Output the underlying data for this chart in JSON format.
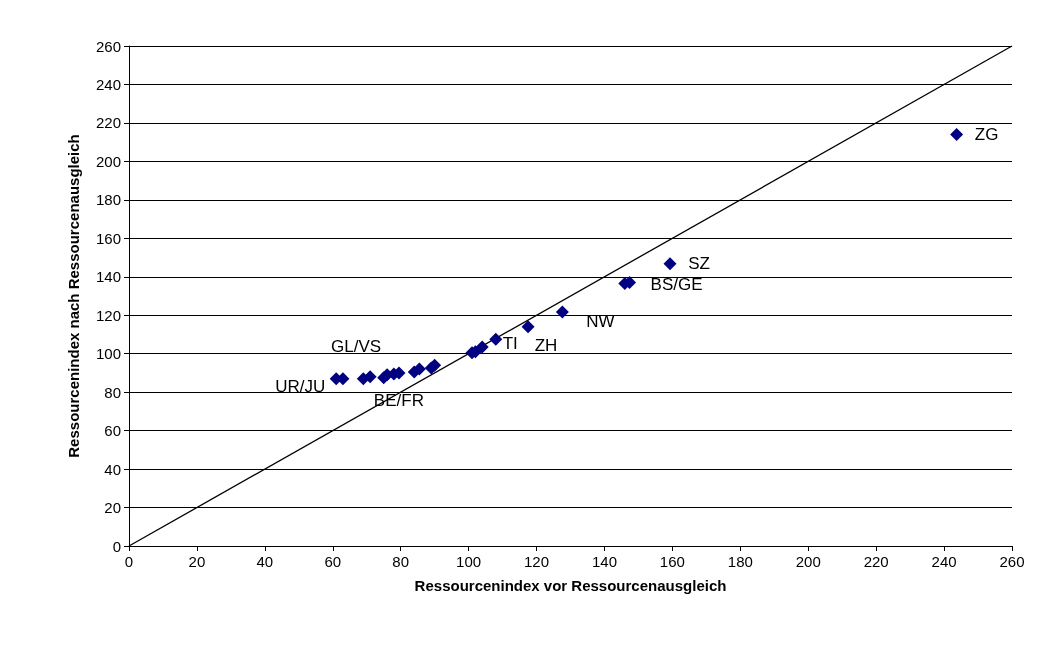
{
  "chart_data": {
    "type": "scatter",
    "xlabel": "Ressourcenindex vor Ressourcenausgleich",
    "ylabel": "Ressourcenindex nach Ressourcenausgleich",
    "xlim": [
      0,
      260
    ],
    "xticks": [
      0,
      20,
      40,
      60,
      80,
      100,
      120,
      140,
      160,
      180,
      200,
      220,
      240,
      260
    ],
    "ylim": [
      0,
      260
    ],
    "yticks": [
      0,
      20,
      40,
      60,
      80,
      100,
      120,
      140,
      160,
      180,
      200,
      220,
      240,
      260
    ],
    "grid": "y",
    "marker": "diamond",
    "series": [
      {
        "color": "#000080",
        "x": [
          61,
          63,
          69,
          71,
          75,
          76,
          78,
          79.5,
          84,
          85.5,
          89,
          90,
          101,
          102,
          104,
          108,
          117.5,
          127.6,
          146,
          147.4,
          159.3,
          243.7
        ],
        "values": [
          87,
          87,
          87,
          88,
          87.5,
          89,
          89.5,
          90,
          90.5,
          92,
          92.5,
          94,
          100.5,
          101,
          103.5,
          107.5,
          114,
          121.7,
          136.5,
          137,
          146.8,
          214
        ]
      },
      {
        "type": "line",
        "color": "#000000",
        "marker": "none",
        "x": [
          0,
          260
        ],
        "values": [
          0,
          260
        ]
      }
    ],
    "annotations": [
      {
        "text": "UR/JU",
        "x": 61,
        "y": 87
      },
      {
        "text": "GL/VS",
        "x": 71,
        "y": 88
      },
      {
        "text": "BE/FR",
        "x": 78,
        "y": 89.5
      },
      {
        "text": "TI",
        "x": 104,
        "y": 103.5
      },
      {
        "text": "ZH",
        "x": 117.5,
        "y": 114
      },
      {
        "text": "NW",
        "x": 127.6,
        "y": 121.7
      },
      {
        "text": "BS/GE",
        "x": 147.4,
        "y": 137
      },
      {
        "text": "SZ",
        "x": 159.3,
        "y": 146.8
      },
      {
        "text": "ZG",
        "x": 243.7,
        "y": 214
      }
    ]
  }
}
